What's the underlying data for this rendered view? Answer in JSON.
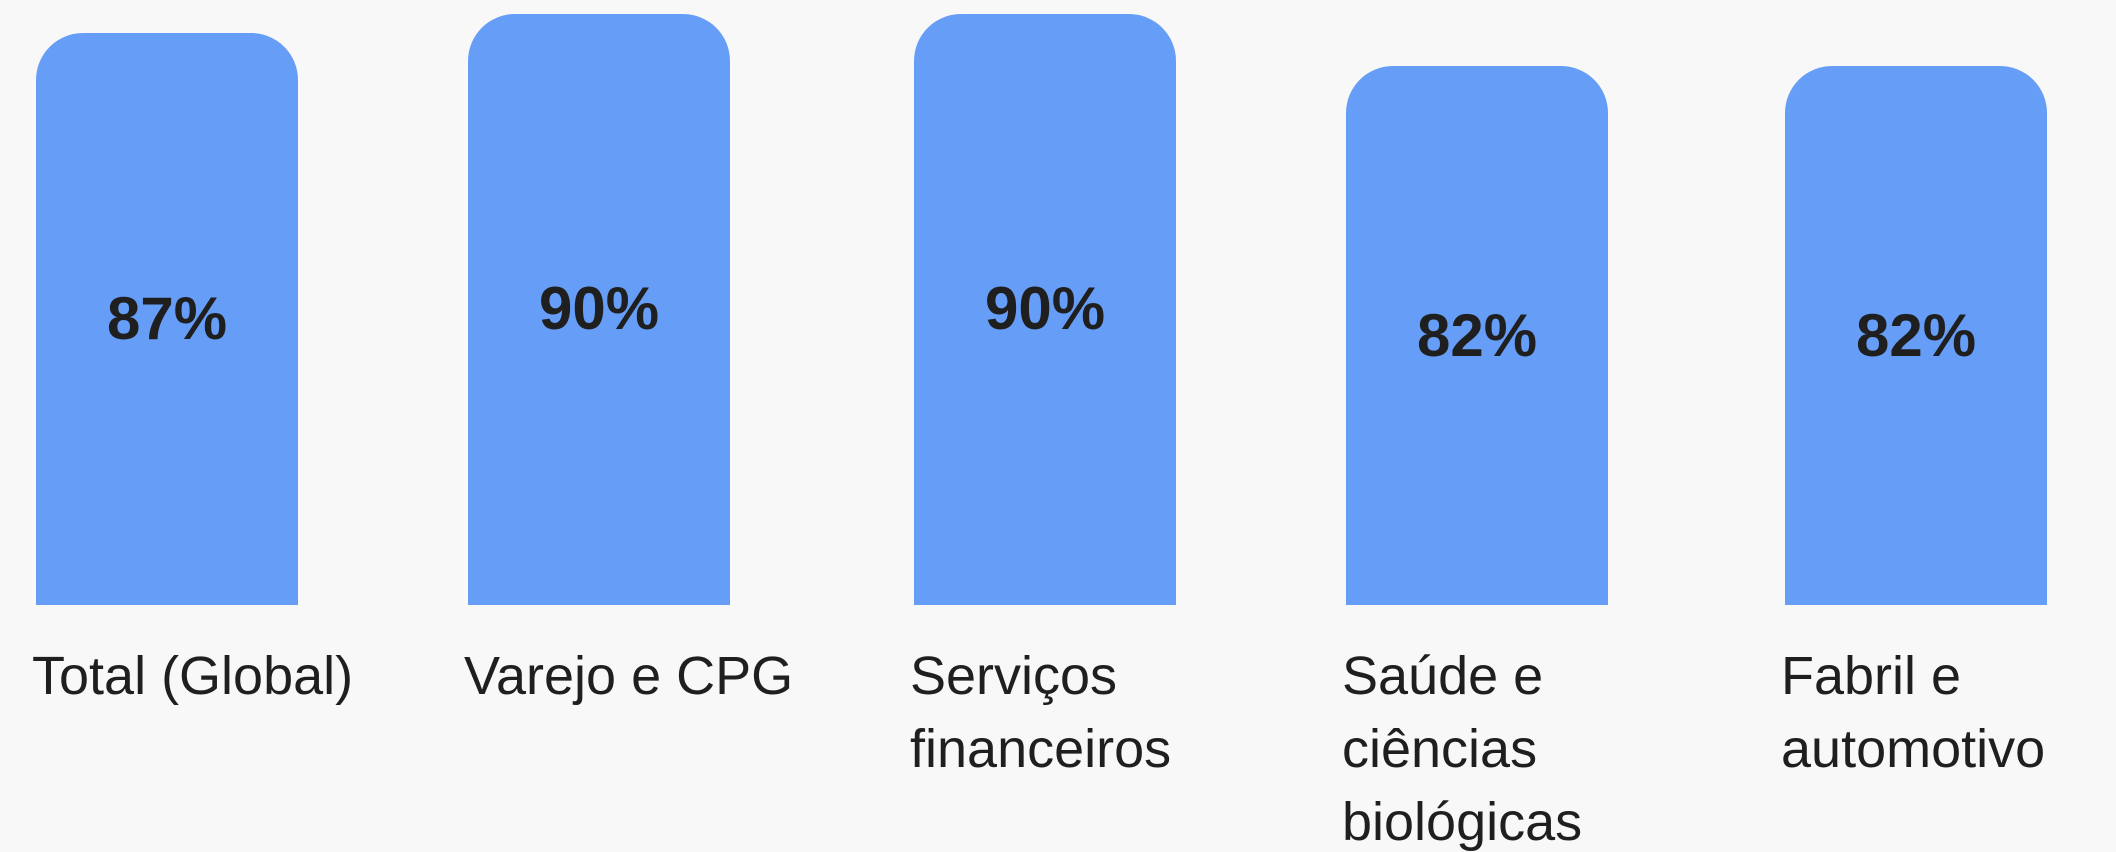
{
  "chart_data": {
    "type": "bar",
    "categories": [
      "Total (Global)",
      "Varejo e CPG",
      "Serviços financeiros",
      "Saúde e ciências biológicas",
      "Fabril e automotivo"
    ],
    "values": [
      87,
      90,
      90,
      82,
      82
    ],
    "value_labels": [
      "87%",
      "90%",
      "90%",
      "82%",
      "82%"
    ],
    "color": "#669df6"
  }
}
